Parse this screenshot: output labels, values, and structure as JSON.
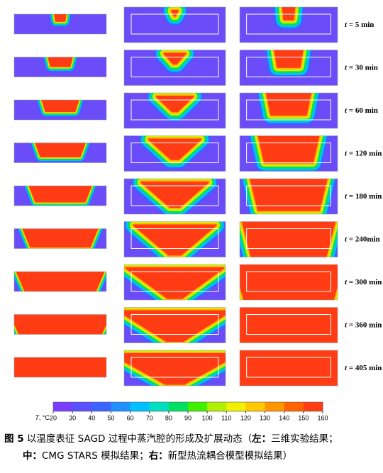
{
  "time_labels": [
    {
      "var": "t",
      "rest": "= 5 min"
    },
    {
      "var": "t",
      "rest": "= 30 min"
    },
    {
      "var": "t",
      "rest": "= 60 min"
    },
    {
      "var": "t",
      "rest": "= 120 min"
    },
    {
      "var": "t",
      "rest": "= 180 min"
    },
    {
      "var": "t",
      "rest": "= 240min"
    },
    {
      "var": "t",
      "rest": "= 300 min"
    },
    {
      "var": "t",
      "rest": "= 360 min"
    },
    {
      "var": "t",
      "rest": "= 405 min"
    }
  ],
  "colorbar": {
    "label": {
      "var": "T",
      "rest": ", °C"
    },
    "ticks": [
      20,
      30,
      40,
      50,
      60,
      70,
      80,
      90,
      100,
      110,
      120,
      130,
      140,
      150,
      160
    ],
    "colors": [
      "#7a3cff",
      "#5a50ff",
      "#3c64ff",
      "#2090ff",
      "#00c0ff",
      "#00e0c0",
      "#00e060",
      "#40f000",
      "#b0f000",
      "#f0f000",
      "#ffc800",
      "#ff9600",
      "#ff6400",
      "#ff3c14"
    ]
  },
  "caption": [
    [
      {
        "text": "图 5",
        "bold": true
      },
      {
        "text": " 以温度表征 SAGD 过程中蒸汽腔的形成及扩展动态（",
        "bold": false
      },
      {
        "text": "左：",
        "bold": true
      },
      {
        "text": "三维实验结果；",
        "bold": false
      }
    ],
    [
      {
        "text": "中：",
        "bold": true
      },
      {
        "text": "CMG STARS  模拟结果；",
        "bold": false
      },
      {
        "text": "右：",
        "bold": true
      },
      {
        "text": "新型热流耦合模型模拟结果）",
        "bold": false
      }
    ]
  ]
}
